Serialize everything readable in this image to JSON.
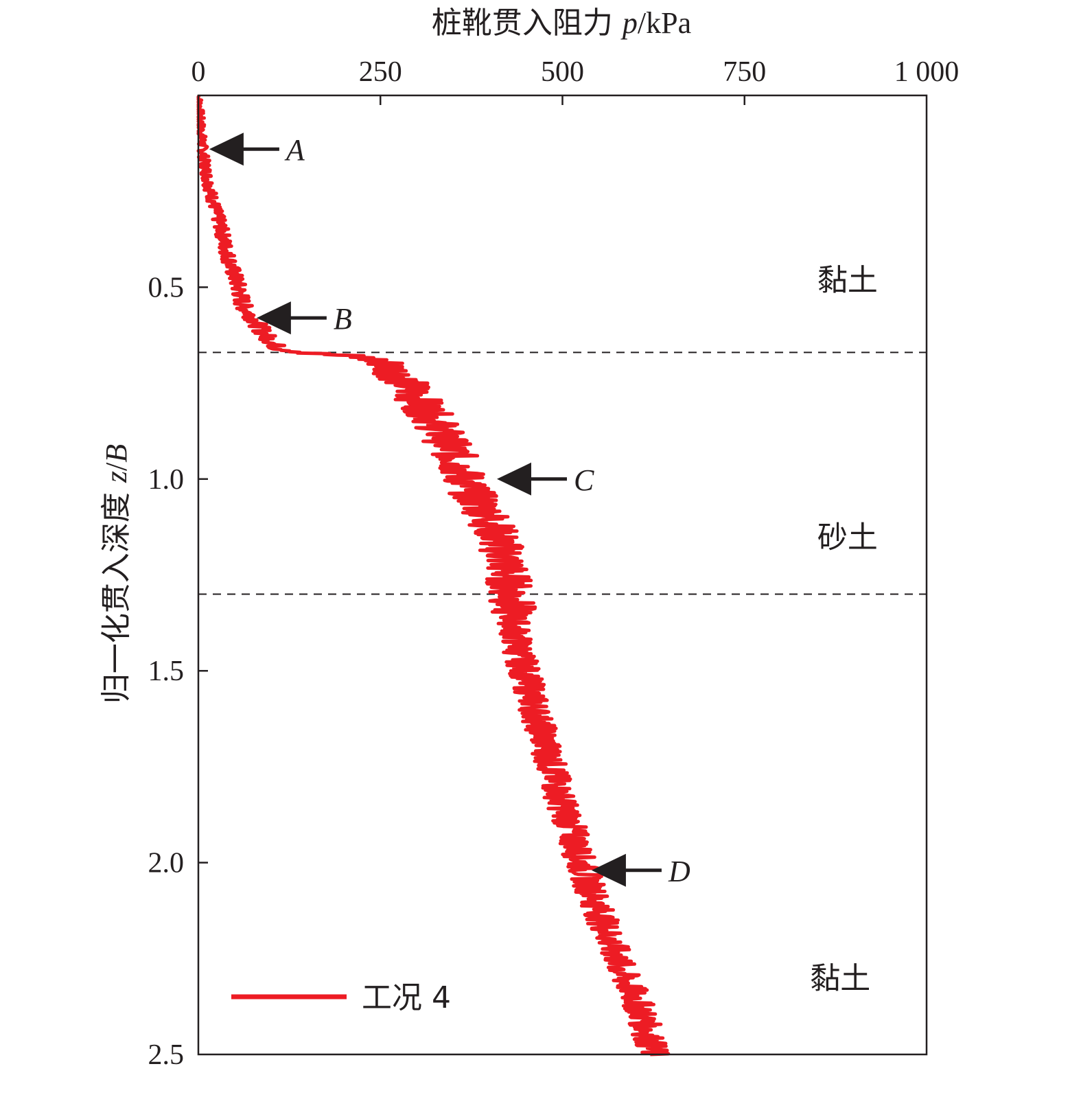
{
  "chart_data": {
    "type": "line",
    "x_axis": {
      "label_main": "桩靴贯入阻力 ",
      "label_symbol": "p",
      "label_unit": "/kPa",
      "position": "top",
      "range": [
        0,
        1000
      ],
      "ticks": [
        0,
        250,
        500,
        750,
        1000
      ],
      "tick_labels": [
        "0",
        "250",
        "500",
        "750",
        "1 000"
      ]
    },
    "y_axis": {
      "label_main": "归一化贯入深度 ",
      "label_symbol": "z",
      "label_sep": "/",
      "label_symbol2": "B",
      "range": [
        0,
        2.5
      ],
      "inverted": true,
      "ticks": [
        0.5,
        1.0,
        1.5,
        2.0,
        2.5
      ],
      "tick_labels": [
        "0.5",
        "1.0",
        "1.5",
        "2.0",
        "2.5"
      ]
    },
    "series": [
      {
        "name": "工况 4",
        "color": "#ed1c24",
        "points": [
          [
            0,
            0.0
          ],
          [
            2,
            0.05
          ],
          [
            4,
            0.1
          ],
          [
            6,
            0.14
          ],
          [
            9,
            0.18
          ],
          [
            13,
            0.22
          ],
          [
            18,
            0.26
          ],
          [
            24,
            0.3
          ],
          [
            32,
            0.35
          ],
          [
            38,
            0.4
          ],
          [
            46,
            0.45
          ],
          [
            55,
            0.5
          ],
          [
            62,
            0.55
          ],
          [
            75,
            0.58
          ],
          [
            90,
            0.62
          ],
          [
            110,
            0.66
          ],
          [
            150,
            0.672
          ],
          [
            200,
            0.678
          ],
          [
            230,
            0.685
          ],
          [
            255,
            0.695
          ],
          [
            270,
            0.72
          ],
          [
            290,
            0.76
          ],
          [
            305,
            0.8
          ],
          [
            325,
            0.85
          ],
          [
            340,
            0.9
          ],
          [
            355,
            0.95
          ],
          [
            365,
            1.0
          ],
          [
            380,
            1.05
          ],
          [
            400,
            1.1
          ],
          [
            410,
            1.15
          ],
          [
            420,
            1.2
          ],
          [
            425,
            1.25
          ],
          [
            430,
            1.3
          ],
          [
            432,
            1.35
          ],
          [
            435,
            1.4
          ],
          [
            440,
            1.45
          ],
          [
            448,
            1.5
          ],
          [
            455,
            1.55
          ],
          [
            462,
            1.6
          ],
          [
            470,
            1.65
          ],
          [
            478,
            1.7
          ],
          [
            485,
            1.75
          ],
          [
            492,
            1.8
          ],
          [
            500,
            1.85
          ],
          [
            510,
            1.9
          ],
          [
            518,
            1.95
          ],
          [
            525,
            2.0
          ],
          [
            535,
            2.05
          ],
          [
            545,
            2.1
          ],
          [
            555,
            2.15
          ],
          [
            565,
            2.2
          ],
          [
            575,
            2.25
          ],
          [
            585,
            2.3
          ],
          [
            600,
            2.35
          ],
          [
            610,
            2.4
          ],
          [
            618,
            2.45
          ],
          [
            625,
            2.5
          ]
        ]
      }
    ],
    "layer_boundaries": [
      0.67,
      1.3
    ],
    "annotations": [
      {
        "label": "A",
        "x": 15,
        "y": 0.14
      },
      {
        "label": "B",
        "x": 80,
        "y": 0.58
      },
      {
        "label": "C",
        "x": 410,
        "y": 1.0
      },
      {
        "label": "D",
        "x": 540,
        "y": 2.02
      }
    ],
    "layers": [
      {
        "label": "黏土",
        "y": 0.48,
        "x": 850
      },
      {
        "label": "砂土",
        "y": 1.15,
        "x": 850
      },
      {
        "label": "黏土",
        "y": 2.3,
        "x": 840
      }
    ],
    "legend": {
      "label": "工况 4",
      "placement": "bottom-left"
    }
  }
}
